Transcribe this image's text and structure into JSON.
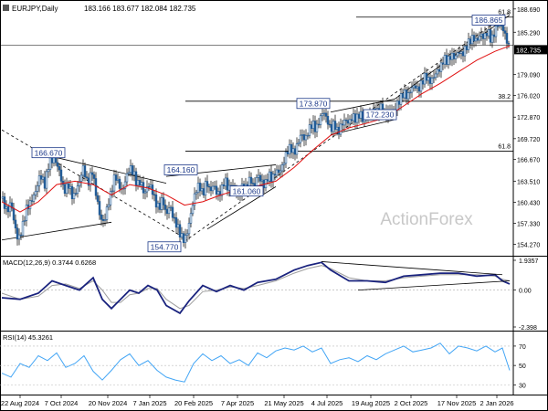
{
  "chart_data": [
    {
      "type": "candlestick",
      "title": "EURJPY,Daily",
      "ohlc_label": "183.166 183.677 182.084 182.735",
      "last_price": 182.735,
      "ylim": [
        152.6,
        189.6
      ],
      "y_ticks": [
        "188.690",
        "185.290",
        "182.735",
        "179.090",
        "176.020",
        "172.870",
        "169.720",
        "166.670",
        "163.510",
        "160.430",
        "157.330",
        "154.270"
      ],
      "x_tick_labels": [
        "22 Aug 2024",
        "7 Oct 2024",
        "20 Nov 2024",
        "7 Jan 2025",
        "20 Feb 2025",
        "7 Apr 2025",
        "21 May 2025",
        "4 Jul 2025",
        "19 Aug 2025",
        "2 Oct 2025",
        "17 Nov 2025",
        "2 Jan 2026"
      ],
      "price_path": [
        [
          0,
          161.0
        ],
        [
          6,
          159.0
        ],
        [
          10,
          160.5
        ],
        [
          14,
          157.0
        ],
        [
          18,
          154.8
        ],
        [
          22,
          156.5
        ],
        [
          27,
          159.5
        ],
        [
          32,
          160.5
        ],
        [
          37,
          162.0
        ],
        [
          42,
          164.5
        ],
        [
          47,
          163.0
        ],
        [
          52,
          166.4
        ],
        [
          58,
          166.7
        ],
        [
          63,
          165.0
        ],
        [
          68,
          162.0
        ],
        [
          73,
          163.0
        ],
        [
          78,
          161.0
        ],
        [
          84,
          163.0
        ],
        [
          89,
          165.5
        ],
        [
          94,
          163.0
        ],
        [
          99,
          165.0
        ],
        [
          104,
          161.0
        ],
        [
          108,
          158.0
        ],
        [
          112,
          157.5
        ],
        [
          116,
          160.0
        ],
        [
          120,
          162.0
        ],
        [
          124,
          164.5
        ],
        [
          128,
          163.0
        ],
        [
          132,
          162.0
        ],
        [
          136,
          164.0
        ],
        [
          140,
          165.5
        ],
        [
          144,
          164.8
        ],
        [
          148,
          163.0
        ],
        [
          152,
          163.5
        ],
        [
          156,
          161.5
        ],
        [
          160,
          163.0
        ],
        [
          164,
          162.5
        ],
        [
          168,
          160.5
        ],
        [
          172,
          159.5
        ],
        [
          176,
          161.0
        ],
        [
          180,
          158.5
        ],
        [
          184,
          160.0
        ],
        [
          188,
          158.0
        ],
        [
          192,
          157.0
        ],
        [
          196,
          155.5
        ],
        [
          200,
          154.8
        ],
        [
          204,
          156.5
        ],
        [
          208,
          159.5
        ],
        [
          212,
          162.0
        ],
        [
          216,
          163.0
        ],
        [
          220,
          161.5
        ],
        [
          224,
          163.5
        ],
        [
          228,
          162.0
        ],
        [
          232,
          163.0
        ],
        [
          236,
          161.5
        ],
        [
          240,
          162.0
        ],
        [
          244,
          163.8
        ],
        [
          248,
          162.3
        ],
        [
          252,
          163.0
        ],
        [
          256,
          161.8
        ],
        [
          260,
          161.5
        ],
        [
          264,
          163.0
        ],
        [
          268,
          162.3
        ],
        [
          272,
          164.0
        ],
        [
          276,
          162.5
        ],
        [
          280,
          164.5
        ],
        [
          284,
          163.5
        ],
        [
          288,
          162.8
        ],
        [
          292,
          164.5
        ],
        [
          296,
          163.8
        ],
        [
          300,
          165.0
        ],
        [
          304,
          164.8
        ],
        [
          308,
          166.0
        ],
        [
          312,
          167.8
        ],
        [
          316,
          168.5
        ],
        [
          320,
          167.5
        ],
        [
          324,
          169.0
        ],
        [
          328,
          170.5
        ],
        [
          332,
          169.5
        ],
        [
          336,
          171.0
        ],
        [
          340,
          172.0
        ],
        [
          344,
          171.0
        ],
        [
          348,
          172.5
        ],
        [
          352,
          173.8
        ],
        [
          356,
          172.5
        ],
        [
          360,
          171.0
        ],
        [
          364,
          172.0
        ],
        [
          368,
          170.5
        ],
        [
          372,
          171.8
        ],
        [
          376,
          172.5
        ],
        [
          380,
          172.0
        ],
        [
          384,
          173.0
        ],
        [
          388,
          172.5
        ],
        [
          392,
          173.5
        ],
        [
          396,
          172.3
        ],
        [
          400,
          173.5
        ],
        [
          404,
          172.8
        ],
        [
          408,
          174.0
        ],
        [
          412,
          173.5
        ],
        [
          416,
          174.5
        ],
        [
          420,
          173.0
        ],
        [
          424,
          174.0
        ],
        [
          428,
          173.5
        ],
        [
          432,
          174.5
        ],
        [
          436,
          175.5
        ],
        [
          440,
          176.5
        ],
        [
          444,
          175.8
        ],
        [
          448,
          177.0
        ],
        [
          452,
          177.5
        ],
        [
          456,
          176.8
        ],
        [
          460,
          178.0
        ],
        [
          464,
          179.0
        ],
        [
          468,
          178.0
        ],
        [
          472,
          178.5
        ],
        [
          476,
          179.5
        ],
        [
          480,
          180.0
        ],
        [
          484,
          181.5
        ],
        [
          488,
          181.0
        ],
        [
          492,
          182.0
        ],
        [
          496,
          181.5
        ],
        [
          500,
          182.5
        ],
        [
          504,
          182.0
        ],
        [
          508,
          183.0
        ],
        [
          512,
          184.0
        ],
        [
          516,
          184.5
        ],
        [
          520,
          184.0
        ],
        [
          524,
          185.0
        ],
        [
          528,
          184.5
        ],
        [
          532,
          185.5
        ],
        [
          536,
          184.0
        ],
        [
          540,
          185.5
        ],
        [
          544,
          186.8
        ],
        [
          548,
          186.0
        ],
        [
          552,
          184.5
        ],
        [
          556,
          182.7
        ]
      ],
      "ema_path": [
        [
          0,
          160.5
        ],
        [
          20,
          159.0
        ],
        [
          40,
          160.5
        ],
        [
          60,
          163.0
        ],
        [
          80,
          163.5
        ],
        [
          100,
          163.0
        ],
        [
          120,
          161.5
        ],
        [
          140,
          163.0
        ],
        [
          160,
          162.5
        ],
        [
          180,
          161.5
        ],
        [
          200,
          160.0
        ],
        [
          220,
          160.5
        ],
        [
          240,
          161.5
        ],
        [
          260,
          162.3
        ],
        [
          280,
          162.8
        ],
        [
          300,
          163.5
        ],
        [
          320,
          165.5
        ],
        [
          340,
          168.0
        ],
        [
          360,
          170.2
        ],
        [
          380,
          171.3
        ],
        [
          400,
          172.0
        ],
        [
          420,
          172.8
        ],
        [
          440,
          174.5
        ],
        [
          460,
          176.3
        ],
        [
          480,
          177.8
        ],
        [
          500,
          179.5
        ],
        [
          520,
          181.2
        ],
        [
          540,
          182.5
        ],
        [
          556,
          183.3
        ]
      ],
      "annotations": [
        {
          "label": "166.670",
          "date_index": 51,
          "price": 166.67
        },
        {
          "label": "164.160",
          "date_index": 196,
          "price": 164.16
        },
        {
          "label": "161.060",
          "date_index": 268,
          "price": 161.06
        },
        {
          "label": "154.770",
          "date_index": 178,
          "price": 154.77
        },
        {
          "label": "173.870",
          "date_index": 341,
          "price": 173.87
        },
        {
          "label": "172.230",
          "date_index": 414,
          "price": 172.23
        },
        {
          "label": "186.865",
          "date_index": 545,
          "price": 186.865
        }
      ],
      "fib_levels": [
        {
          "label": "38.2",
          "price": 175.2
        },
        {
          "label": "61.8",
          "price": 167.9
        },
        {
          "label": "61.8",
          "price": 187.5
        }
      ],
      "watermark": "ActionForex"
    },
    {
      "type": "line",
      "title": "MACD(12,26,9) 0.3744 0.6268",
      "ylim": [
        -2.398,
        1.9357
      ],
      "y_ticks": [
        "1.9357",
        "0.00",
        "-2.398"
      ],
      "series": [
        {
          "values": [
            [
              0,
              -0.5
            ],
            [
              20,
              -0.6
            ],
            [
              40,
              -0.2
            ],
            [
              55,
              0.6
            ],
            [
              70,
              0.3
            ],
            [
              85,
              0.0
            ],
            [
              100,
              0.8
            ],
            [
              110,
              -0.6
            ],
            [
              120,
              -1.2
            ],
            [
              130,
              -0.6
            ],
            [
              140,
              0.0
            ],
            [
              150,
              -0.2
            ],
            [
              160,
              0.3
            ],
            [
              170,
              0.0
            ],
            [
              180,
              -1.0
            ],
            [
              195,
              -1.5
            ],
            [
              205,
              -0.7
            ],
            [
              220,
              0.3
            ],
            [
              235,
              -0.1
            ],
            [
              250,
              0.3
            ],
            [
              265,
              0.0
            ],
            [
              280,
              0.5
            ],
            [
              300,
              0.7
            ],
            [
              320,
              1.3
            ],
            [
              335,
              1.6
            ],
            [
              350,
              1.8
            ],
            [
              360,
              1.3
            ],
            [
              380,
              0.6
            ],
            [
              400,
              0.6
            ],
            [
              420,
              0.5
            ],
            [
              440,
              0.9
            ],
            [
              460,
              1.0
            ],
            [
              480,
              1.1
            ],
            [
              500,
              1.1
            ],
            [
              520,
              0.9
            ],
            [
              540,
              1.0
            ],
            [
              548,
              0.6
            ],
            [
              556,
              0.4
            ]
          ]
        },
        {
          "values": [
            [
              0,
              -0.2
            ],
            [
              20,
              -0.6
            ],
            [
              40,
              -0.4
            ],
            [
              55,
              0.3
            ],
            [
              70,
              0.4
            ],
            [
              85,
              0.1
            ],
            [
              100,
              0.6
            ],
            [
              110,
              0.0
            ],
            [
              120,
              -0.8
            ],
            [
              130,
              -0.8
            ],
            [
              140,
              -0.3
            ],
            [
              150,
              -0.2
            ],
            [
              160,
              0.1
            ],
            [
              170,
              0.1
            ],
            [
              180,
              -0.6
            ],
            [
              195,
              -1.2
            ],
            [
              205,
              -1.0
            ],
            [
              220,
              -0.1
            ],
            [
              235,
              0.0
            ],
            [
              250,
              0.2
            ],
            [
              265,
              0.1
            ],
            [
              280,
              0.3
            ],
            [
              300,
              0.6
            ],
            [
              320,
              1.1
            ],
            [
              335,
              1.4
            ],
            [
              350,
              1.6
            ],
            [
              360,
              1.4
            ],
            [
              380,
              0.8
            ],
            [
              400,
              0.6
            ],
            [
              420,
              0.6
            ],
            [
              440,
              0.8
            ],
            [
              460,
              0.9
            ],
            [
              480,
              1.0
            ],
            [
              500,
              1.0
            ],
            [
              520,
              1.0
            ],
            [
              540,
              0.9
            ],
            [
              548,
              0.7
            ],
            [
              556,
              0.6
            ]
          ]
        }
      ]
    },
    {
      "type": "line",
      "title": "RSI(14) 45.3261",
      "ylim": [
        20,
        85
      ],
      "y_ticks": [
        "70",
        "50",
        "30"
      ],
      "series": [
        {
          "values": [
            [
              0,
              42
            ],
            [
              10,
              38
            ],
            [
              20,
              52
            ],
            [
              30,
              48
            ],
            [
              40,
              60
            ],
            [
              50,
              55
            ],
            [
              60,
              63
            ],
            [
              70,
              48
            ],
            [
              80,
              52
            ],
            [
              90,
              60
            ],
            [
              100,
              44
            ],
            [
              110,
              35
            ],
            [
              120,
              45
            ],
            [
              130,
              56
            ],
            [
              140,
              62
            ],
            [
              150,
              50
            ],
            [
              160,
              55
            ],
            [
              170,
              45
            ],
            [
              180,
              38
            ],
            [
              190,
              35
            ],
            [
              200,
              33
            ],
            [
              210,
              52
            ],
            [
              220,
              62
            ],
            [
              230,
              55
            ],
            [
              240,
              60
            ],
            [
              250,
              52
            ],
            [
              260,
              56
            ],
            [
              270,
              50
            ],
            [
              280,
              63
            ],
            [
              290,
              58
            ],
            [
              300,
              65
            ],
            [
              310,
              68
            ],
            [
              320,
              66
            ],
            [
              330,
              70
            ],
            [
              340,
              64
            ],
            [
              350,
              68
            ],
            [
              360,
              52
            ],
            [
              370,
              56
            ],
            [
              380,
              58
            ],
            [
              390,
              54
            ],
            [
              400,
              60
            ],
            [
              410,
              56
            ],
            [
              420,
              62
            ],
            [
              430,
              66
            ],
            [
              440,
              70
            ],
            [
              450,
              64
            ],
            [
              460,
              66
            ],
            [
              470,
              68
            ],
            [
              480,
              73
            ],
            [
              490,
              62
            ],
            [
              500,
              70
            ],
            [
              510,
              68
            ],
            [
              520,
              65
            ],
            [
              530,
              70
            ],
            [
              540,
              64
            ],
            [
              548,
              68
            ],
            [
              556,
              45
            ]
          ]
        }
      ]
    }
  ]
}
